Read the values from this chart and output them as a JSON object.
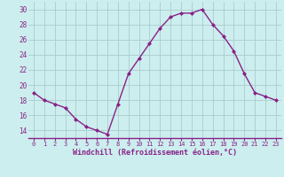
{
  "x": [
    0,
    1,
    2,
    3,
    4,
    5,
    6,
    7,
    8,
    9,
    10,
    11,
    12,
    13,
    14,
    15,
    16,
    17,
    18,
    19,
    20,
    21,
    22,
    23
  ],
  "y": [
    19,
    18,
    17.5,
    17,
    15.5,
    14.5,
    14,
    13.5,
    17.5,
    21.5,
    23.5,
    25.5,
    27.5,
    29,
    29.5,
    29.5,
    30,
    28,
    26.5,
    24.5,
    21.5,
    19,
    18.5,
    18
  ],
  "line_color": "#882288",
  "marker": "D",
  "marker_size": 2.0,
  "bg_color": "#cceeee",
  "grid_color": "#aacccc",
  "xlabel": "Windchill (Refroidissement éolien,°C)",
  "xlabel_color": "#882288",
  "tick_color": "#882288",
  "axis_color": "#882288",
  "ylim": [
    13,
    31
  ],
  "yticks": [
    14,
    16,
    18,
    20,
    22,
    24,
    26,
    28,
    30
  ],
  "xlim": [
    -0.5,
    23.5
  ],
  "xticks": [
    0,
    1,
    2,
    3,
    4,
    5,
    6,
    7,
    8,
    9,
    10,
    11,
    12,
    13,
    14,
    15,
    16,
    17,
    18,
    19,
    20,
    21,
    22,
    23
  ],
  "xtick_labels": [
    "0",
    "1",
    "2",
    "3",
    "4",
    "5",
    "6",
    "7",
    "8",
    "9",
    "10",
    "11",
    "12",
    "13",
    "14",
    "15",
    "16",
    "17",
    "18",
    "19",
    "20",
    "21",
    "22",
    "23"
  ],
  "line_width": 1.0,
  "xlabel_fontsize": 6.0,
  "xtick_fontsize": 5.0,
  "ytick_fontsize": 5.5
}
